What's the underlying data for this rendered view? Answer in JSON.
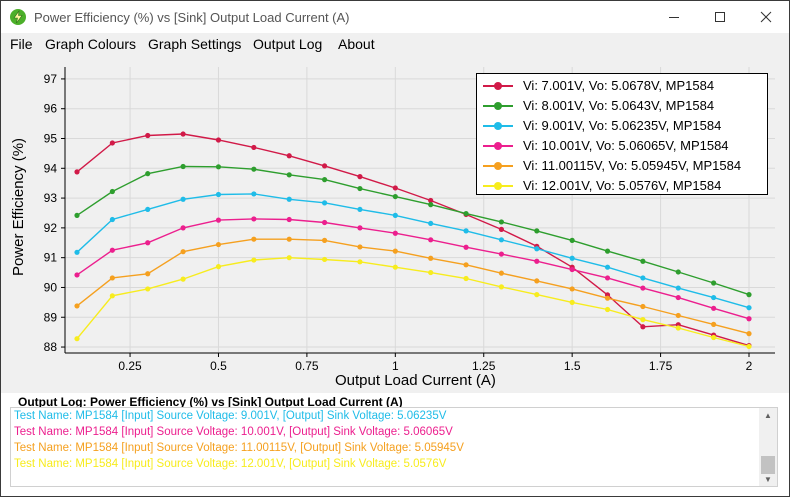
{
  "window": {
    "title": "Power Efficiency (%) vs [Sink] Output Load Current (A)",
    "app_icon": "lightning-bolt-icon",
    "controls": [
      "minimize-icon",
      "maximize-icon",
      "close-icon"
    ]
  },
  "menu": {
    "items": [
      "File",
      "Graph Colours",
      "Graph Settings",
      "Output Log",
      "About"
    ]
  },
  "chart_data": {
    "type": "line",
    "title": "",
    "xlabel": "Output Load Current (A)",
    "ylabel": "Power Efficiency (%)",
    "xlim": [
      0.1,
      2.0
    ],
    "ylim": [
      87.8,
      97.4
    ],
    "x_ticks": [
      0.25,
      0.5,
      0.75,
      1,
      1.25,
      1.5,
      1.75,
      2
    ],
    "x_tick_labels": [
      "0.25",
      "0.5",
      "0.75",
      "1",
      "1.25",
      "1.5",
      "1.75",
      "2"
    ],
    "y_ticks": [
      88,
      89,
      90,
      91,
      92,
      93,
      94,
      95,
      96,
      97
    ],
    "y_tick_labels": [
      "88",
      "89",
      "90",
      "91",
      "92",
      "93",
      "94",
      "95",
      "96",
      "97"
    ],
    "grid": true,
    "legend_position": "top-right",
    "x": [
      0.1,
      0.2,
      0.3,
      0.4,
      0.5,
      0.6,
      0.7,
      0.8,
      0.9,
      1.0,
      1.1,
      1.2,
      1.3,
      1.4,
      1.5,
      1.6,
      1.7,
      1.8,
      1.9,
      2.0
    ],
    "series": [
      {
        "name": "Vi: 7.001V, Vo: 5.0678V, MP1584",
        "color": "#d11a48",
        "values": [
          93.88,
          94.85,
          95.1,
          95.15,
          94.95,
          94.7,
          94.42,
          94.08,
          93.72,
          93.34,
          92.92,
          92.45,
          91.95,
          91.38,
          90.68,
          89.75,
          88.68,
          88.75,
          88.4,
          88.05
        ]
      },
      {
        "name": "Vi: 8.001V, Vo: 5.0643V, MP1584",
        "color": "#2e9e2e",
        "values": [
          92.42,
          93.22,
          93.82,
          94.06,
          94.05,
          93.97,
          93.78,
          93.62,
          93.32,
          93.05,
          92.78,
          92.48,
          92.2,
          91.9,
          91.58,
          91.22,
          90.88,
          90.52,
          90.15,
          89.76
        ]
      },
      {
        "name": "Vi: 9.001V, Vo: 5.06235V, MP1584",
        "color": "#1fbce8",
        "values": [
          91.18,
          92.28,
          92.62,
          92.96,
          93.12,
          93.14,
          92.96,
          92.84,
          92.62,
          92.42,
          92.15,
          91.9,
          91.6,
          91.3,
          90.98,
          90.68,
          90.32,
          89.98,
          89.66,
          89.32
        ]
      },
      {
        "name": "Vi: 10.001V, Vo: 5.06065V, MP1584",
        "color": "#ec1f8e",
        "values": [
          90.42,
          91.25,
          91.5,
          92.0,
          92.26,
          92.3,
          92.28,
          92.18,
          92.0,
          91.82,
          91.6,
          91.35,
          91.12,
          90.88,
          90.6,
          90.32,
          89.98,
          89.66,
          89.3,
          88.95
        ]
      },
      {
        "name": "Vi: 11.00115V, Vo: 5.05945V, MP1584",
        "color": "#f5a01f",
        "values": [
          89.38,
          90.32,
          90.46,
          91.2,
          91.44,
          91.62,
          91.62,
          91.58,
          91.36,
          91.22,
          90.98,
          90.76,
          90.48,
          90.22,
          89.95,
          89.64,
          89.36,
          89.06,
          88.76,
          88.45
        ]
      },
      {
        "name": "Vi: 12.001V, Vo: 5.0576V, MP1584",
        "color": "#f7ec1e",
        "values": [
          88.28,
          89.72,
          89.95,
          90.28,
          90.7,
          90.92,
          91.0,
          90.94,
          90.86,
          90.68,
          90.5,
          90.3,
          90.02,
          89.76,
          89.5,
          89.26,
          88.92,
          88.64,
          88.32,
          88.02
        ]
      }
    ]
  },
  "output_log": {
    "title": "Output Log: Power Efficiency (%) vs [Sink] Output Load Current (A)",
    "lines": [
      {
        "text": "Test Name: MP1584 [Input] Source Voltage: 9.001V, [Output] Sink Voltage: 5.06235V",
        "color": "#1fbce8"
      },
      {
        "text": "Test Name: MP1584 [Input] Source Voltage: 10.001V, [Output] Sink Voltage: 5.06065V",
        "color": "#ec1f8e"
      },
      {
        "text": "Test Name: MP1584 [Input] Source Voltage: 11.00115V, [Output] Sink Voltage: 5.05945V",
        "color": "#f5a01f"
      },
      {
        "text": "Test Name: MP1584 [Input] Source Voltage: 12.001V, [Output] Sink Voltage: 5.0576V",
        "color": "#f7ec1e"
      }
    ]
  }
}
